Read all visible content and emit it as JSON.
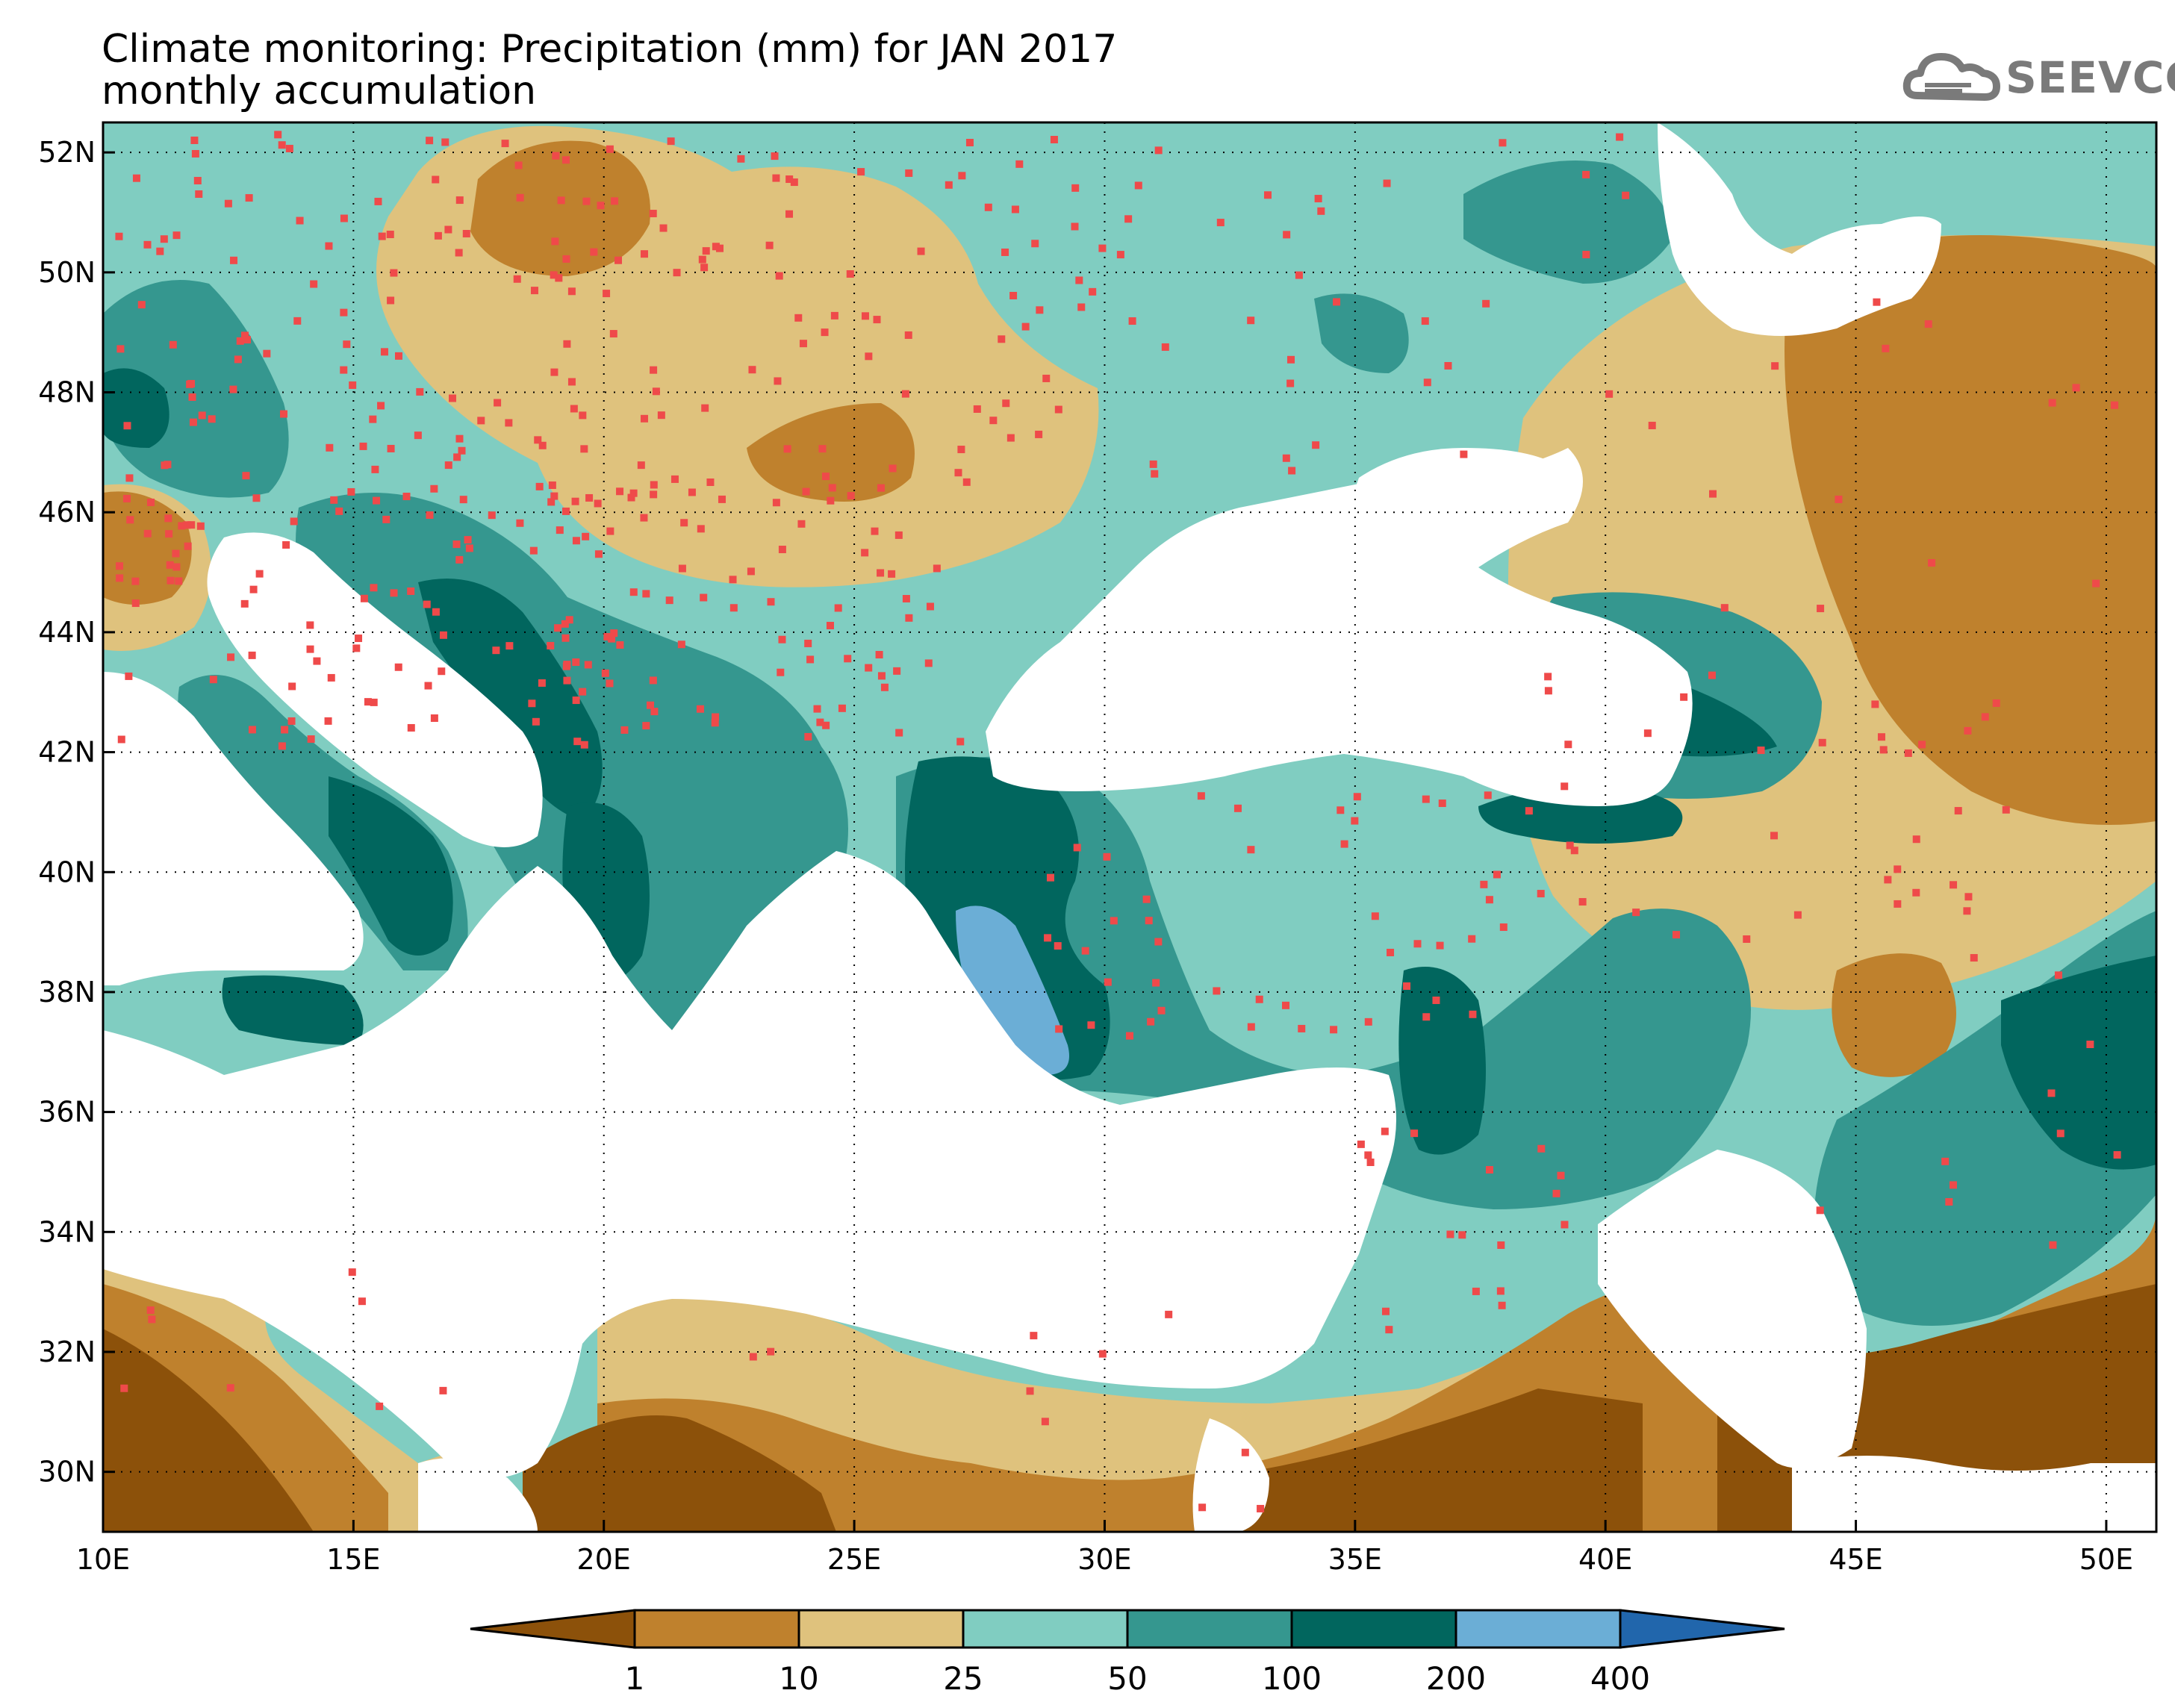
{
  "title_line1": "Climate monitoring: Precipitation (mm) for JAN 2017",
  "title_line2": "monthly accumulation",
  "logo_text": "SEEVCCC",
  "map": {
    "lon_range": [
      10,
      51
    ],
    "lat_range": [
      29,
      52.5
    ],
    "lon_ticks": [
      {
        "v": 10,
        "t": "10E"
      },
      {
        "v": 15,
        "t": "15E"
      },
      {
        "v": 20,
        "t": "20E"
      },
      {
        "v": 25,
        "t": "25E"
      },
      {
        "v": 30,
        "t": "30E"
      },
      {
        "v": 35,
        "t": "35E"
      },
      {
        "v": 40,
        "t": "40E"
      },
      {
        "v": 45,
        "t": "45E"
      },
      {
        "v": 50,
        "t": "50E"
      }
    ],
    "lat_ticks": [
      {
        "v": 30,
        "t": "30N"
      },
      {
        "v": 32,
        "t": "32N"
      },
      {
        "v": 34,
        "t": "34N"
      },
      {
        "v": 36,
        "t": "36N"
      },
      {
        "v": 38,
        "t": "38N"
      },
      {
        "v": 40,
        "t": "40N"
      },
      {
        "v": 42,
        "t": "42N"
      },
      {
        "v": 44,
        "t": "44N"
      },
      {
        "v": 46,
        "t": "46N"
      },
      {
        "v": 48,
        "t": "48N"
      },
      {
        "v": 50,
        "t": "50N"
      },
      {
        "v": 52,
        "t": "52N"
      }
    ],
    "grid": "dotted",
    "station_color": "#ef4a4a"
  },
  "colorbar": {
    "colors": [
      "#8c510a",
      "#bf812d",
      "#dfc27d",
      "#80cdc1",
      "#35978f",
      "#01665e",
      "#6baed6",
      "#2166ac"
    ],
    "labels": [
      "1",
      "10",
      "25",
      "50",
      "100",
      "200",
      "400"
    ]
  }
}
